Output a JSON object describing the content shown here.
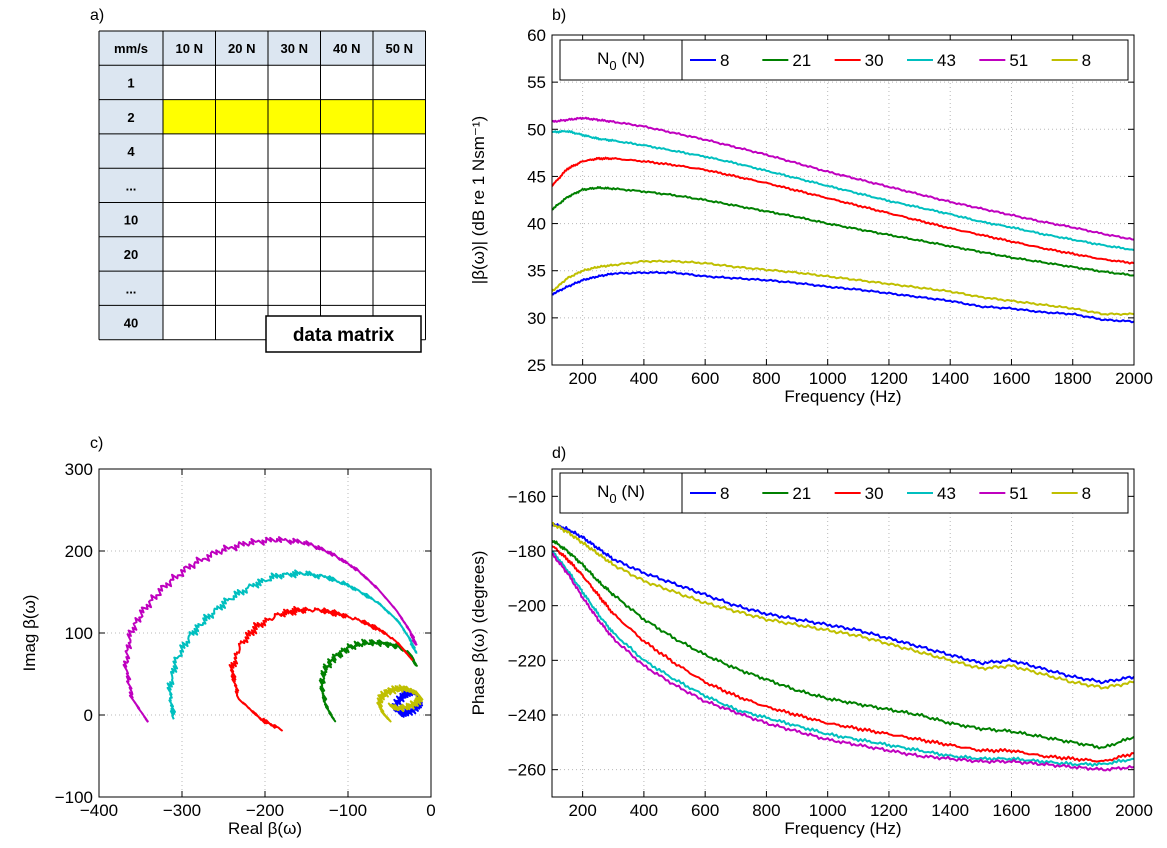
{
  "colors": {
    "blue": "#0000ff",
    "green": "#008000",
    "red": "#ff0000",
    "cyan": "#00bfbf",
    "magenta": "#bf00bf",
    "olive": "#bfbf00",
    "highlight": "#ffff00",
    "header_bg": "#dce6f1"
  },
  "panels": {
    "a": "a)",
    "b": "b)",
    "c": "c)",
    "d": "d)"
  },
  "table": {
    "corner": "mm/s",
    "col_headers": [
      "10 N",
      "20 N",
      "30 N",
      "40 N",
      "50 N"
    ],
    "row_headers": [
      "1",
      "2",
      "4",
      "...",
      "10",
      "20",
      "...",
      "40"
    ],
    "highlight_row": 1,
    "label": "data matrix"
  },
  "chart_data": [
    {
      "id": "b",
      "type": "line",
      "xlabel": "Frequency (Hz)",
      "ylabel": "|β(ω)| (dB re 1 Nsm⁻¹)",
      "xlim": [
        100,
        2000
      ],
      "ylim": [
        25,
        60
      ],
      "xticks": [
        200,
        400,
        600,
        800,
        1000,
        1200,
        1400,
        1600,
        1800,
        2000
      ],
      "yticks": [
        25,
        30,
        35,
        40,
        45,
        50,
        55,
        60
      ],
      "grid": true,
      "legend_title": "N0 (N)",
      "legend_placement": "top",
      "x": [
        100,
        150,
        200,
        250,
        300,
        400,
        500,
        600,
        700,
        800,
        900,
        1000,
        1100,
        1200,
        1300,
        1400,
        1500,
        1600,
        1700,
        1800,
        1900,
        2000
      ],
      "series": [
        {
          "name": "8",
          "color": "blue",
          "values": [
            32.5,
            33.3,
            34.0,
            34.4,
            34.7,
            34.8,
            34.8,
            34.4,
            34.2,
            34.0,
            33.7,
            33.3,
            33.0,
            32.6,
            32.2,
            31.8,
            31.2,
            31.0,
            30.6,
            30.4,
            29.8,
            29.6
          ]
        },
        {
          "name": "21",
          "color": "green",
          "values": [
            41.5,
            42.8,
            43.6,
            43.8,
            43.7,
            43.4,
            43.0,
            42.5,
            41.9,
            41.3,
            40.7,
            40.0,
            39.4,
            38.8,
            38.2,
            37.6,
            37.0,
            36.4,
            35.9,
            35.4,
            34.9,
            34.5
          ]
        },
        {
          "name": "30",
          "color": "red",
          "values": [
            44.0,
            45.8,
            46.6,
            46.9,
            46.9,
            46.6,
            46.2,
            45.7,
            45.0,
            44.3,
            43.5,
            42.7,
            41.9,
            41.1,
            40.3,
            39.5,
            38.8,
            38.1,
            37.4,
            36.8,
            36.2,
            35.8
          ]
        },
        {
          "name": "43",
          "color": "cyan",
          "values": [
            49.7,
            49.8,
            49.4,
            49.0,
            48.8,
            48.3,
            47.7,
            47.1,
            46.4,
            45.6,
            44.8,
            44.0,
            43.2,
            42.4,
            41.7,
            41.0,
            40.2,
            39.6,
            38.9,
            38.3,
            37.7,
            37.2
          ]
        },
        {
          "name": "51",
          "color": "magenta",
          "values": [
            50.8,
            51.0,
            51.2,
            51.0,
            50.8,
            50.3,
            49.6,
            48.9,
            48.1,
            47.3,
            46.4,
            45.5,
            44.7,
            43.9,
            43.1,
            42.3,
            41.6,
            40.9,
            40.2,
            39.6,
            38.9,
            38.3
          ]
        },
        {
          "name": "8",
          "color": "olive",
          "values": [
            32.8,
            34.2,
            35.0,
            35.4,
            35.6,
            36.0,
            36.0,
            35.8,
            35.4,
            35.1,
            34.8,
            34.4,
            34.0,
            33.6,
            33.2,
            32.8,
            32.2,
            31.8,
            31.4,
            31.0,
            30.4,
            30.4
          ]
        }
      ]
    },
    {
      "id": "c",
      "type": "line",
      "xlabel": "Real β(ω)",
      "ylabel": "Imag β(ω)",
      "xlim": [
        -400,
        0
      ],
      "ylim": [
        -100,
        300
      ],
      "xticks": [
        -400,
        -300,
        -200,
        -100,
        0
      ],
      "yticks": [
        -100,
        0,
        100,
        200,
        300
      ],
      "grid": true,
      "series": [
        {
          "name": "8",
          "color": "blue",
          "x": [
            -45,
            -40,
            -33,
            -28,
            -22,
            -17,
            -14,
            -14,
            -17,
            -24,
            -32,
            -38
          ],
          "y": [
            7,
            16,
            24,
            27,
            28,
            26,
            21,
            15,
            10,
            5,
            2,
            1
          ]
        },
        {
          "name": "21",
          "color": "green",
          "x": [
            -117,
            -127,
            -132,
            -128,
            -117,
            -100,
            -80,
            -60,
            -40,
            -24,
            -18
          ],
          "y": [
            -6,
            12,
            35,
            55,
            70,
            82,
            88,
            88,
            84,
            73,
            60
          ]
        },
        {
          "name": "30",
          "color": "red",
          "x": [
            -180,
            -205,
            -232,
            -240,
            -230,
            -210,
            -185,
            -160,
            -135,
            -110,
            -85,
            -60,
            -40,
            -25
          ],
          "y": [
            -18,
            -5,
            20,
            55,
            85,
            108,
            122,
            128,
            128,
            123,
            115,
            103,
            88,
            70
          ]
        },
        {
          "name": "43",
          "color": "cyan",
          "x": [
            -310,
            -315,
            -308,
            -290,
            -270,
            -245,
            -215,
            -185,
            -155,
            -125,
            -95,
            -65,
            -40,
            -25,
            -18
          ],
          "y": [
            -5,
            30,
            65,
            97,
            118,
            140,
            158,
            170,
            173,
            168,
            156,
            138,
            115,
            92,
            75
          ]
        },
        {
          "name": "51",
          "color": "magenta",
          "x": [
            -340,
            -360,
            -368,
            -362,
            -345,
            -320,
            -290,
            -255,
            -220,
            -185,
            -150,
            -120,
            -90,
            -65,
            -42,
            -25,
            -18
          ],
          "y": [
            -10,
            20,
            60,
            100,
            130,
            158,
            182,
            200,
            210,
            214,
            210,
            197,
            178,
            155,
            128,
            102,
            85
          ]
        },
        {
          "name": "8",
          "color": "olive",
          "x": [
            -50,
            -58,
            -62,
            -60,
            -52,
            -42,
            -32,
            -24,
            -16,
            -12,
            -16,
            -26,
            -40,
            -48
          ],
          "y": [
            -6,
            2,
            12,
            22,
            29,
            32,
            32,
            30,
            26,
            21,
            16,
            11,
            8,
            10
          ]
        }
      ]
    },
    {
      "id": "d",
      "type": "line",
      "xlabel": "Frequency (Hz)",
      "ylabel": "Phase β(ω) (degrees)",
      "xlim": [
        100,
        2000
      ],
      "ylim": [
        -270,
        -150
      ],
      "xticks": [
        200,
        400,
        600,
        800,
        1000,
        1200,
        1400,
        1600,
        1800,
        2000
      ],
      "yticks": [
        -260,
        -240,
        -220,
        -200,
        -180,
        -160
      ],
      "grid": true,
      "legend_title": "N0 (N)",
      "legend_placement": "top",
      "x": [
        100,
        150,
        200,
        250,
        300,
        400,
        500,
        600,
        700,
        800,
        900,
        1000,
        1100,
        1200,
        1300,
        1400,
        1500,
        1600,
        1700,
        1800,
        1900,
        2000
      ],
      "series": [
        {
          "name": "8",
          "color": "blue",
          "values": [
            -170,
            -172,
            -175,
            -179,
            -183,
            -188,
            -192,
            -196,
            -200,
            -203,
            -205,
            -207,
            -209,
            -212,
            -215,
            -218,
            -221,
            -220,
            -223,
            -226,
            -228,
            -226
          ]
        },
        {
          "name": "21",
          "color": "green",
          "values": [
            -176,
            -180,
            -185,
            -191,
            -196,
            -205,
            -212,
            -218,
            -223,
            -227,
            -231,
            -234,
            -236,
            -238,
            -240,
            -243,
            -245,
            -246,
            -248,
            -250,
            -252,
            -248
          ]
        },
        {
          "name": "30",
          "color": "red",
          "values": [
            -178,
            -183,
            -189,
            -196,
            -203,
            -213,
            -221,
            -228,
            -233,
            -237,
            -240,
            -243,
            -245,
            -247,
            -249,
            -251,
            -253,
            -253,
            -255,
            -256,
            -257,
            -254
          ]
        },
        {
          "name": "43",
          "color": "cyan",
          "values": [
            -180,
            -187,
            -195,
            -203,
            -210,
            -220,
            -227,
            -233,
            -238,
            -241,
            -244,
            -247,
            -249,
            -251,
            -253,
            -255,
            -256,
            -256,
            -257,
            -258,
            -258,
            -256
          ]
        },
        {
          "name": "51",
          "color": "magenta",
          "values": [
            -181,
            -188,
            -197,
            -205,
            -212,
            -222,
            -229,
            -235,
            -239,
            -243,
            -246,
            -249,
            -251,
            -253,
            -255,
            -256,
            -257,
            -257,
            -258,
            -259,
            -260,
            -259
          ]
        },
        {
          "name": "8",
          "color": "olive",
          "values": [
            -170,
            -173,
            -177,
            -181,
            -185,
            -191,
            -195,
            -199,
            -202,
            -205,
            -207,
            -209,
            -211,
            -214,
            -217,
            -220,
            -223,
            -222,
            -225,
            -228,
            -230,
            -228
          ]
        }
      ]
    }
  ]
}
